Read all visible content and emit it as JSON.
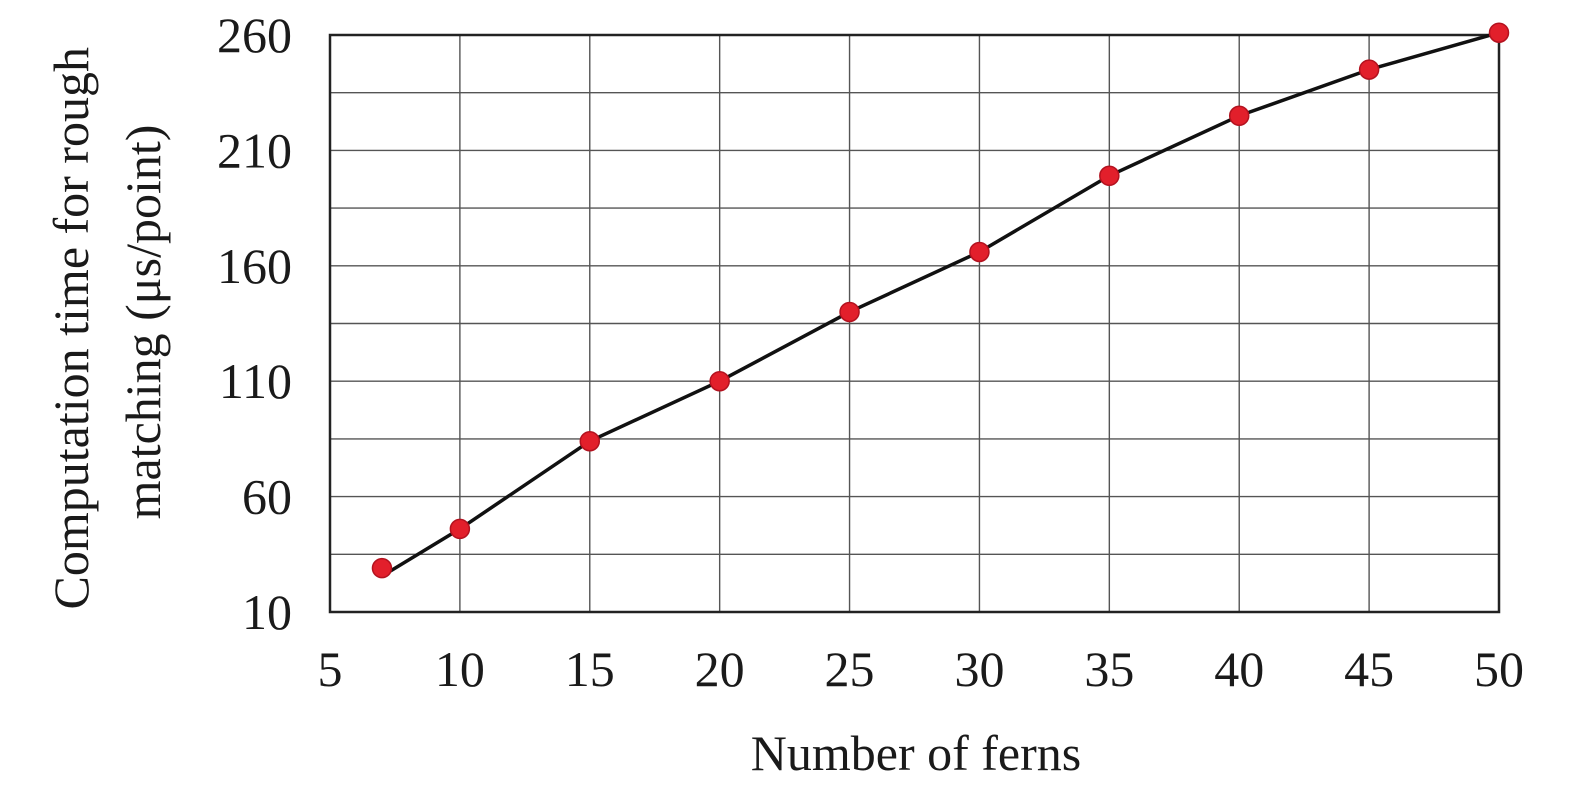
{
  "chart_data": {
    "type": "line",
    "title": "",
    "xlabel": "Number of ferns",
    "ylabel_lines": [
      "Computation time for rough",
      "matching (μs/point)"
    ],
    "xlim": [
      5,
      50
    ],
    "ylim": [
      10,
      260
    ],
    "x_ticks": [
      5,
      10,
      15,
      20,
      25,
      30,
      35,
      40,
      45,
      50
    ],
    "y_ticks": [
      10,
      60,
      110,
      160,
      210,
      260
    ],
    "y_minor_gridlines": [
      35,
      85,
      135,
      185,
      235
    ],
    "grid": true,
    "series": [
      {
        "x": [
          7,
          10,
          15,
          20,
          25,
          30,
          35,
          40,
          45,
          50
        ],
        "y": [
          29,
          46,
          84,
          110,
          140,
          166,
          199,
          225,
          245,
          261
        ],
        "color": "#e21f2b",
        "line_color": "#111111",
        "marker": "circle"
      }
    ]
  }
}
